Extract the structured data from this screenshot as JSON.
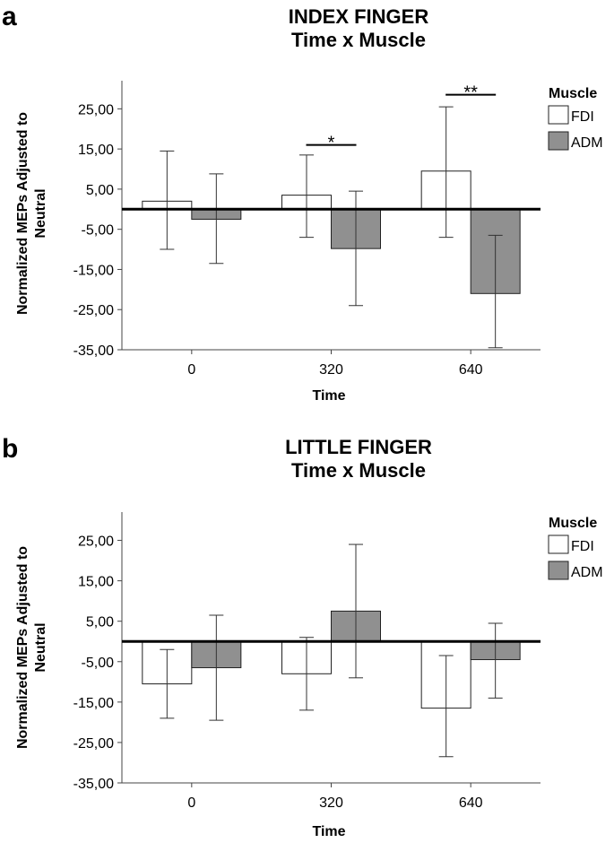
{
  "chart_data": [
    {
      "type": "bar",
      "panel_label": "a",
      "title": "INDEX FINGER",
      "subtitle": "Time x Muscle",
      "xlabel": "Time",
      "ylabel": "Normalized MEPs Adjusted to Neutral",
      "categories": [
        "0",
        "320",
        "640"
      ],
      "ylim": [
        -35,
        32
      ],
      "yticks": [
        25,
        15,
        5,
        -5,
        -15,
        -25,
        -35
      ],
      "ytick_labels": [
        "25,00",
        "15,00",
        "5,00",
        "-5,00",
        "-15,00",
        "-25,00",
        "-35,00"
      ],
      "reference_line": 0,
      "legend": {
        "title": "Muscle",
        "position": "top-right"
      },
      "series": [
        {
          "name": "FDI",
          "color": "#ffffff",
          "values": [
            2.0,
            3.5,
            9.5
          ],
          "error_low": [
            -10.0,
            -7.0,
            -7.0
          ],
          "error_high": [
            14.5,
            13.5,
            25.5
          ]
        },
        {
          "name": "ADM",
          "color": "#909090",
          "values": [
            -2.5,
            -9.8,
            -21.0
          ],
          "error_low": [
            -13.5,
            -24.0,
            -34.5
          ],
          "error_high": [
            8.8,
            4.5,
            -6.5
          ]
        }
      ],
      "significance": [
        {
          "category_index": 1,
          "label": "*",
          "y": 16.0
        },
        {
          "category_index": 2,
          "label": "**",
          "y": 28.5
        }
      ]
    },
    {
      "type": "bar",
      "panel_label": "b",
      "title": "LITTLE FINGER",
      "subtitle": "Time x Muscle",
      "xlabel": "Time",
      "ylabel": "Normalized MEPs Adjusted to Neutral",
      "categories": [
        "0",
        "320",
        "640"
      ],
      "ylim": [
        -35,
        32
      ],
      "yticks": [
        25,
        15,
        5,
        -5,
        -15,
        -25,
        -35
      ],
      "ytick_labels": [
        "25,00",
        "15,00",
        "5,00",
        "-5,00",
        "-15,00",
        "-25,00",
        "-35,00"
      ],
      "reference_line": 0,
      "legend": {
        "title": "Muscle",
        "position": "top-right"
      },
      "series": [
        {
          "name": "FDI",
          "color": "#ffffff",
          "values": [
            -10.5,
            -8.0,
            -16.5
          ],
          "error_low": [
            -19.0,
            -17.0,
            -28.5
          ],
          "error_high": [
            -2.0,
            1.0,
            -3.5
          ]
        },
        {
          "name": "ADM",
          "color": "#909090",
          "values": [
            -6.5,
            7.5,
            -4.5
          ],
          "error_low": [
            -19.5,
            -9.0,
            -14.0
          ],
          "error_high": [
            6.5,
            24.0,
            4.5
          ]
        }
      ],
      "significance": []
    }
  ]
}
